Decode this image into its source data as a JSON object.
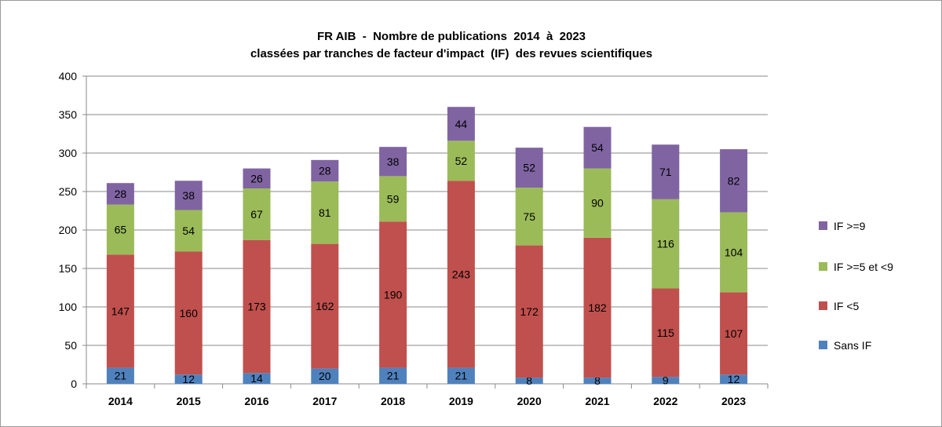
{
  "chart_data": {
    "type": "bar",
    "stacked": true,
    "title": "FR AIB  -  Nombre de publications  2014  à  2023",
    "subtitle": "classées par tranches de facteur d'impact  (IF)  des revues scientifiques",
    "xlabel": "",
    "ylabel": "",
    "ylim": [
      0,
      400
    ],
    "yticks": [
      0,
      50,
      100,
      150,
      200,
      250,
      300,
      350,
      400
    ],
    "grid": true,
    "legend_position": "right",
    "categories": [
      "2014",
      "2015",
      "2016",
      "2017",
      "2018",
      "2019",
      "2020",
      "2021",
      "2022",
      "2023"
    ],
    "series": [
      {
        "name": "Sans IF",
        "color": "#4f81bd",
        "values": [
          21,
          12,
          14,
          20,
          21,
          21,
          8,
          8,
          9,
          12
        ]
      },
      {
        "name": "IF <5",
        "color": "#c0504d",
        "values": [
          147,
          160,
          173,
          162,
          190,
          243,
          172,
          182,
          115,
          107
        ]
      },
      {
        "name": "IF >=5 et <9",
        "color": "#9bbb59",
        "values": [
          65,
          54,
          67,
          81,
          59,
          52,
          75,
          90,
          116,
          104
        ]
      },
      {
        "name": "IF >=9",
        "color": "#8064a2",
        "values": [
          28,
          38,
          26,
          28,
          38,
          44,
          52,
          54,
          71,
          82
        ]
      }
    ]
  }
}
